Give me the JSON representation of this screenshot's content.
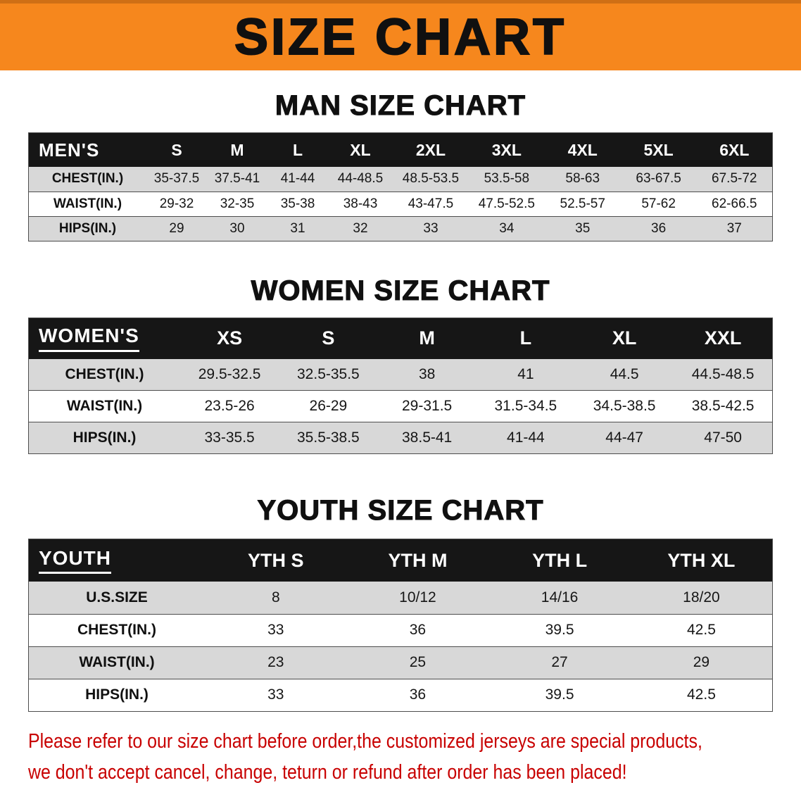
{
  "banner": {
    "title": "SIZE CHART"
  },
  "sections": [
    {
      "id": "men",
      "heading": "MAN SIZE CHART",
      "table": {
        "header": [
          "MEN'S",
          "S",
          "M",
          "L",
          "XL",
          "2XL",
          "3XL",
          "4XL",
          "5XL",
          "6XL"
        ],
        "rows": [
          [
            "CHEST(IN.)",
            "35-37.5",
            "37.5-41",
            "41-44",
            "44-48.5",
            "48.5-53.5",
            "53.5-58",
            "58-63",
            "63-67.5",
            "67.5-72"
          ],
          [
            "WAIST(IN.)",
            "29-32",
            "32-35",
            "35-38",
            "38-43",
            "43-47.5",
            "47.5-52.5",
            "52.5-57",
            "57-62",
            "62-66.5"
          ],
          [
            "HIPS(IN.)",
            "29",
            "30",
            "31",
            "32",
            "33",
            "34",
            "35",
            "36",
            "37"
          ]
        ]
      }
    },
    {
      "id": "women",
      "heading": "WOMEN SIZE CHART",
      "table": {
        "header": [
          "WOMEN'S",
          "XS",
          "S",
          "M",
          "L",
          "XL",
          "XXL"
        ],
        "rows": [
          [
            "CHEST(IN.)",
            "29.5-32.5",
            "32.5-35.5",
            "38",
            "41",
            "44.5",
            "44.5-48.5"
          ],
          [
            "WAIST(IN.)",
            "23.5-26",
            "26-29",
            "29-31.5",
            "31.5-34.5",
            "34.5-38.5",
            "38.5-42.5"
          ],
          [
            "HIPS(IN.)",
            "33-35.5",
            "35.5-38.5",
            "38.5-41",
            "41-44",
            "44-47",
            "47-50"
          ]
        ]
      }
    },
    {
      "id": "youth",
      "heading": "YOUTH SIZE CHART",
      "table": {
        "header": [
          "YOUTH",
          "YTH S",
          "YTH M",
          "YTH L",
          "YTH XL"
        ],
        "rows": [
          [
            "U.S.SIZE",
            "8",
            "10/12",
            "14/16",
            "18/20"
          ],
          [
            "CHEST(IN.)",
            "33",
            "36",
            "39.5",
            "42.5"
          ],
          [
            "WAIST(IN.)",
            "23",
            "25",
            "27",
            "29"
          ],
          [
            "HIPS(IN.)",
            "33",
            "36",
            "39.5",
            "42.5"
          ]
        ]
      }
    }
  ],
  "footer_note": {
    "lines": [
      "Please refer to our size chart before order,the customized jerseys are special products,",
      "we don't accept cancel, change, teturn or refund after order has been placed!"
    ]
  },
  "colors": {
    "banner_bg": "#F6871D",
    "header_bg": "#161616",
    "row_alt_bg": "#D8D8D8",
    "note_color": "#C80000"
  }
}
